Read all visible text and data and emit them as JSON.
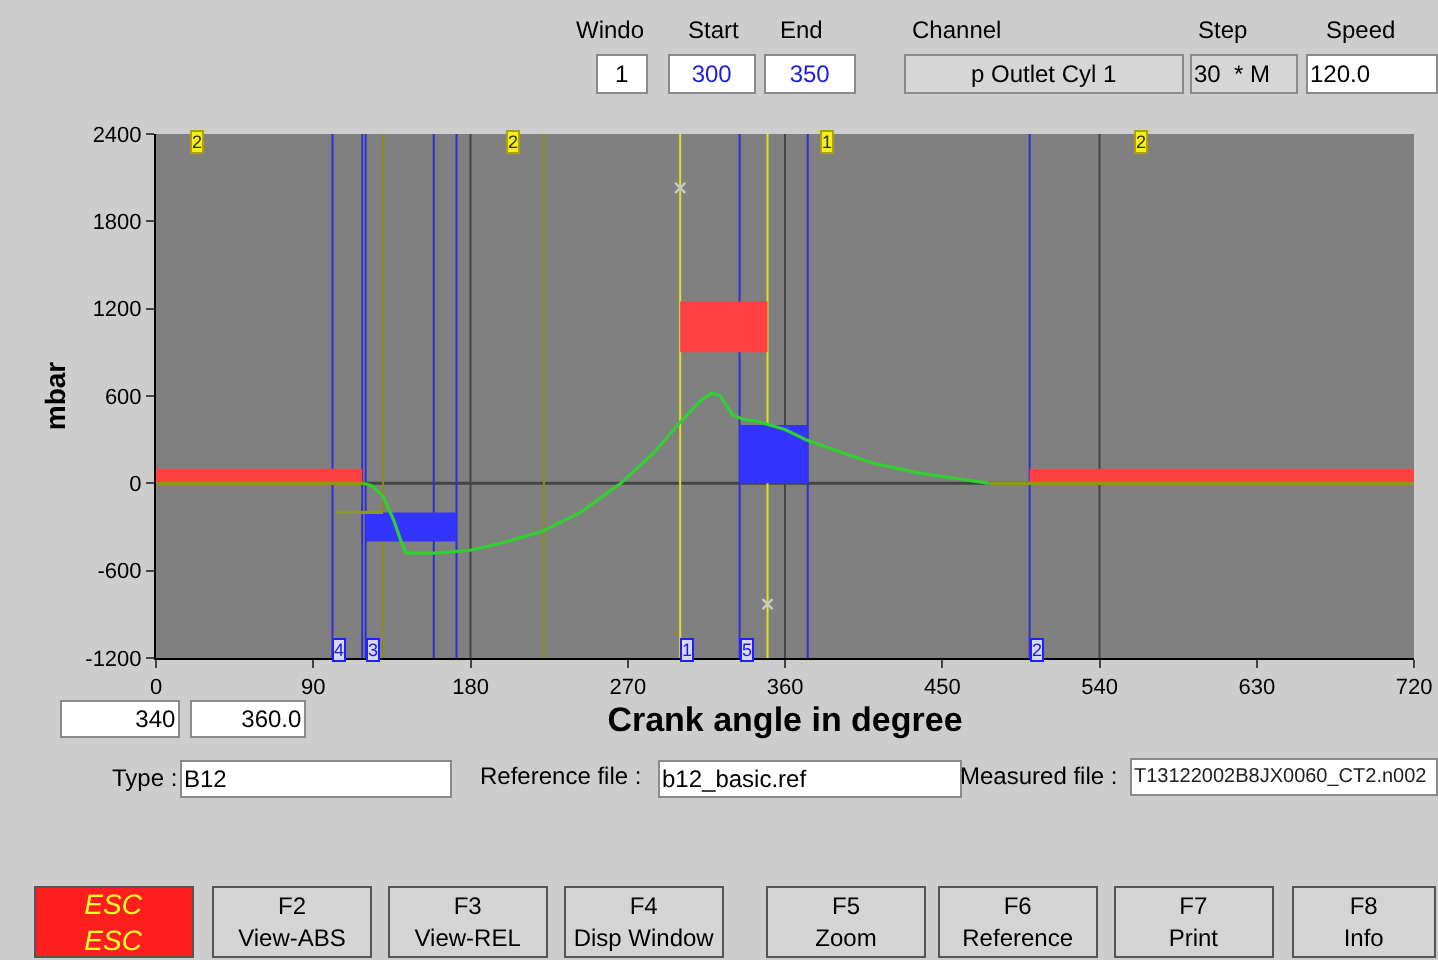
{
  "chart_data": {
    "type": "line",
    "xlabel": "Crank angle in degree",
    "ylabel": "mbar",
    "xlim": [
      0,
      720
    ],
    "xticks": [
      0,
      90,
      180,
      270,
      360,
      450,
      540,
      630,
      720
    ],
    "ylim": [
      -1200,
      2400
    ],
    "yticks": [
      -1200,
      -600,
      0,
      600,
      1200,
      1800,
      2400
    ],
    "grid": false,
    "series": [
      {
        "type": "histogram",
        "color": "#ff4040",
        "bins": [
          0,
          118
        ],
        "values": [
          100
        ]
      },
      {
        "type": "histogram",
        "color": "#ff4040",
        "bins": [
          300,
          350
        ],
        "values": [
          350
        ],
        "base": [
          900
        ]
      },
      {
        "type": "histogram",
        "color": "#ff4040",
        "bins": [
          500,
          720
        ],
        "values": [
          100
        ]
      },
      {
        "type": "histogram",
        "color": "#3434ff",
        "bins": [
          120,
          172
        ],
        "values": [
          -200
        ],
        "base": [
          -200
        ]
      },
      {
        "type": "histogram",
        "color": "#3434ff",
        "bins": [
          334,
          373
        ],
        "values": [
          400
        ]
      },
      {
        "color": "#8a9a20",
        "x": [
          0,
          119,
          300,
          477,
          720
        ],
        "values": [
          0,
          0,
          null,
          0,
          0
        ]
      },
      {
        "color": "#8a9a20",
        "x": [
          103,
          130
        ],
        "values": [
          -200,
          -200
        ]
      },
      {
        "color": "#30d030",
        "x": [
          119,
          124,
          130,
          136,
          140,
          143,
          150,
          160,
          180,
          198,
          221,
          243,
          266,
          285,
          300,
          311,
          318,
          323,
          330,
          336,
          343,
          360,
          372,
          388,
          410,
          437,
          460,
          477
        ],
        "values": [
          0,
          -20,
          -90,
          -250,
          -390,
          -480,
          -480,
          -480,
          -460,
          -410,
          -330,
          -200,
          0,
          210,
          420,
          560,
          620,
          600,
          470,
          440,
          430,
          370,
          300,
          230,
          140,
          70,
          30,
          0
        ]
      },
      {
        "type": "scatter",
        "color": "#c8c8c8",
        "marker": "cross",
        "x": [
          300,
          350
        ],
        "values": [
          2030,
          -830
        ]
      }
    ],
    "ref_lines": [
      {
        "axis": "y",
        "value": 0,
        "color": "#454545"
      },
      {
        "axis": "x",
        "value": 101,
        "color": "#3030d0"
      },
      {
        "axis": "x",
        "value": 118,
        "color": "#3030d0"
      },
      {
        "axis": "x",
        "value": 120,
        "color": "#3030d0"
      },
      {
        "axis": "x",
        "value": 130,
        "color": "#8c8c10"
      },
      {
        "axis": "x",
        "value": 159,
        "color": "#3030d0"
      },
      {
        "axis": "x",
        "value": 172,
        "color": "#3030d0"
      },
      {
        "axis": "x",
        "value": 180,
        "color": "#454545"
      },
      {
        "axis": "x",
        "value": 222,
        "color": "#8c8c10"
      },
      {
        "axis": "x",
        "value": 300,
        "color": "#e0e020"
      },
      {
        "axis": "x",
        "value": 334,
        "color": "#3030d0"
      },
      {
        "axis": "x",
        "value": 350,
        "color": "#e0e020"
      },
      {
        "axis": "x",
        "value": 360,
        "color": "#454545"
      },
      {
        "axis": "x",
        "value": 373,
        "color": "#3030d0"
      },
      {
        "axis": "x",
        "value": 500,
        "color": "#3030d0"
      },
      {
        "axis": "x",
        "value": 540,
        "color": "#454545"
      }
    ],
    "annotations": [
      {
        "text": "2",
        "x": 24,
        "y": 2350
      },
      {
        "text": "2",
        "x": 204,
        "y": 2350
      },
      {
        "text": "1",
        "x": 384,
        "y": 2350
      },
      {
        "text": "2",
        "x": 564,
        "y": 2350
      },
      {
        "text": "4",
        "x": 105,
        "y": -1150
      },
      {
        "text": "3",
        "x": 124,
        "y": -1150
      },
      {
        "text": "1",
        "x": 304,
        "y": -1150
      },
      {
        "text": "5",
        "x": 338,
        "y": -1150
      },
      {
        "text": "2",
        "x": 504,
        "y": -1150
      },
      "Windo",
      "Start",
      "End",
      "1",
      "300",
      "350",
      "Channel",
      "p Outlet Cyl 1",
      "Step",
      "30  * M",
      "Speed",
      "120.0",
      "340",
      "360.0",
      "Type :",
      "B12",
      "Reference file :",
      "b12_basic.ref",
      "Measured file :",
      "T13122002B8JX0060_CT2.n002",
      "ESC\nESC",
      "F2\nView-ABS",
      "F3\nView-REL",
      "F4\nDisp Window",
      "F5\nZoom",
      "F6\nReference",
      "F7\nPrint",
      "F8\nInfo"
    ]
  }
}
